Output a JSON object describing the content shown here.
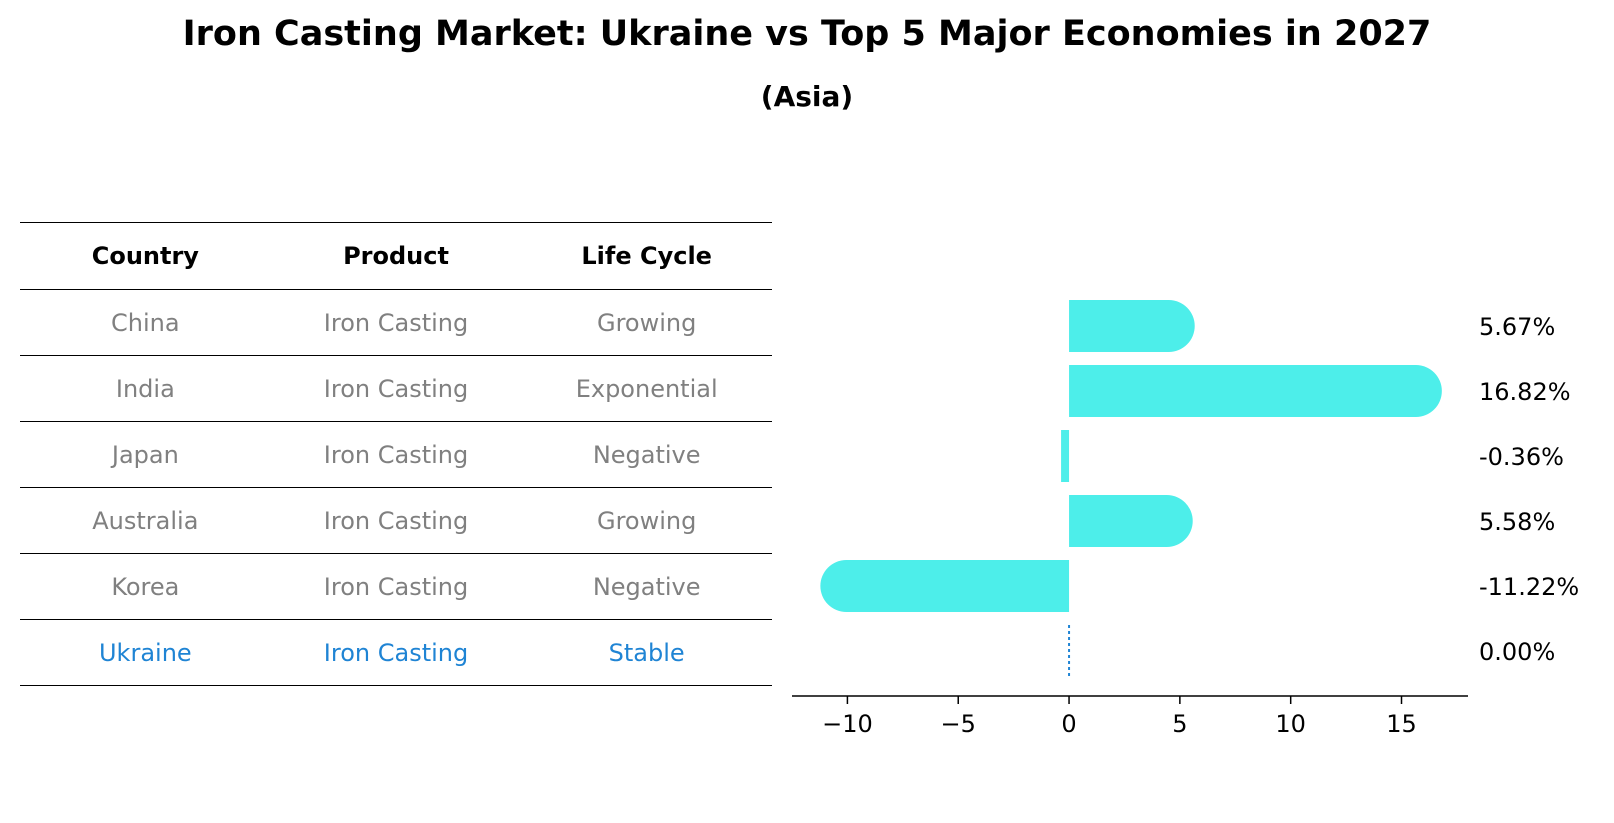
{
  "title": "Iron Casting Market: Ukraine vs Top 5 Major Economies in 2027",
  "subtitle": "(Asia)",
  "table": {
    "headers": [
      "Country",
      "Product",
      "Life Cycle"
    ],
    "rows": [
      [
        "China",
        "Iron Casting",
        "Growing"
      ],
      [
        "India",
        "Iron Casting",
        "Exponential"
      ],
      [
        "Japan",
        "Iron Casting",
        "Negative"
      ],
      [
        "Australia",
        "Iron Casting",
        "Growing"
      ],
      [
        "Korea",
        "Iron Casting",
        "Negative"
      ],
      [
        "Ukraine",
        "Iron Casting",
        "Stable"
      ]
    ]
  },
  "colors": {
    "bar": "#4deeea",
    "highlight": "#1f84d4",
    "muted": "#808080"
  },
  "chart_data": {
    "type": "bar",
    "orientation": "horizontal",
    "title": "Iron Casting Market: Ukraine vs Top 5 Major Economies in 2027",
    "subtitle": "(Asia)",
    "categories": [
      "China",
      "India",
      "Japan",
      "Australia",
      "Korea",
      "Ukraine"
    ],
    "values": [
      5.67,
      16.82,
      -0.36,
      5.58,
      -11.22,
      0.0
    ],
    "value_labels": [
      "5.67%",
      "16.82%",
      "-0.36%",
      "5.58%",
      "-11.22%",
      "0.00%"
    ],
    "xlim": [
      -12.5,
      18
    ],
    "xticks": [
      -10,
      -5,
      0,
      5,
      10,
      15
    ],
    "xtick_labels": [
      "−10",
      "−5",
      "0",
      "5",
      "10",
      "15"
    ],
    "xlabel": "",
    "ylabel": "",
    "grid": false
  }
}
